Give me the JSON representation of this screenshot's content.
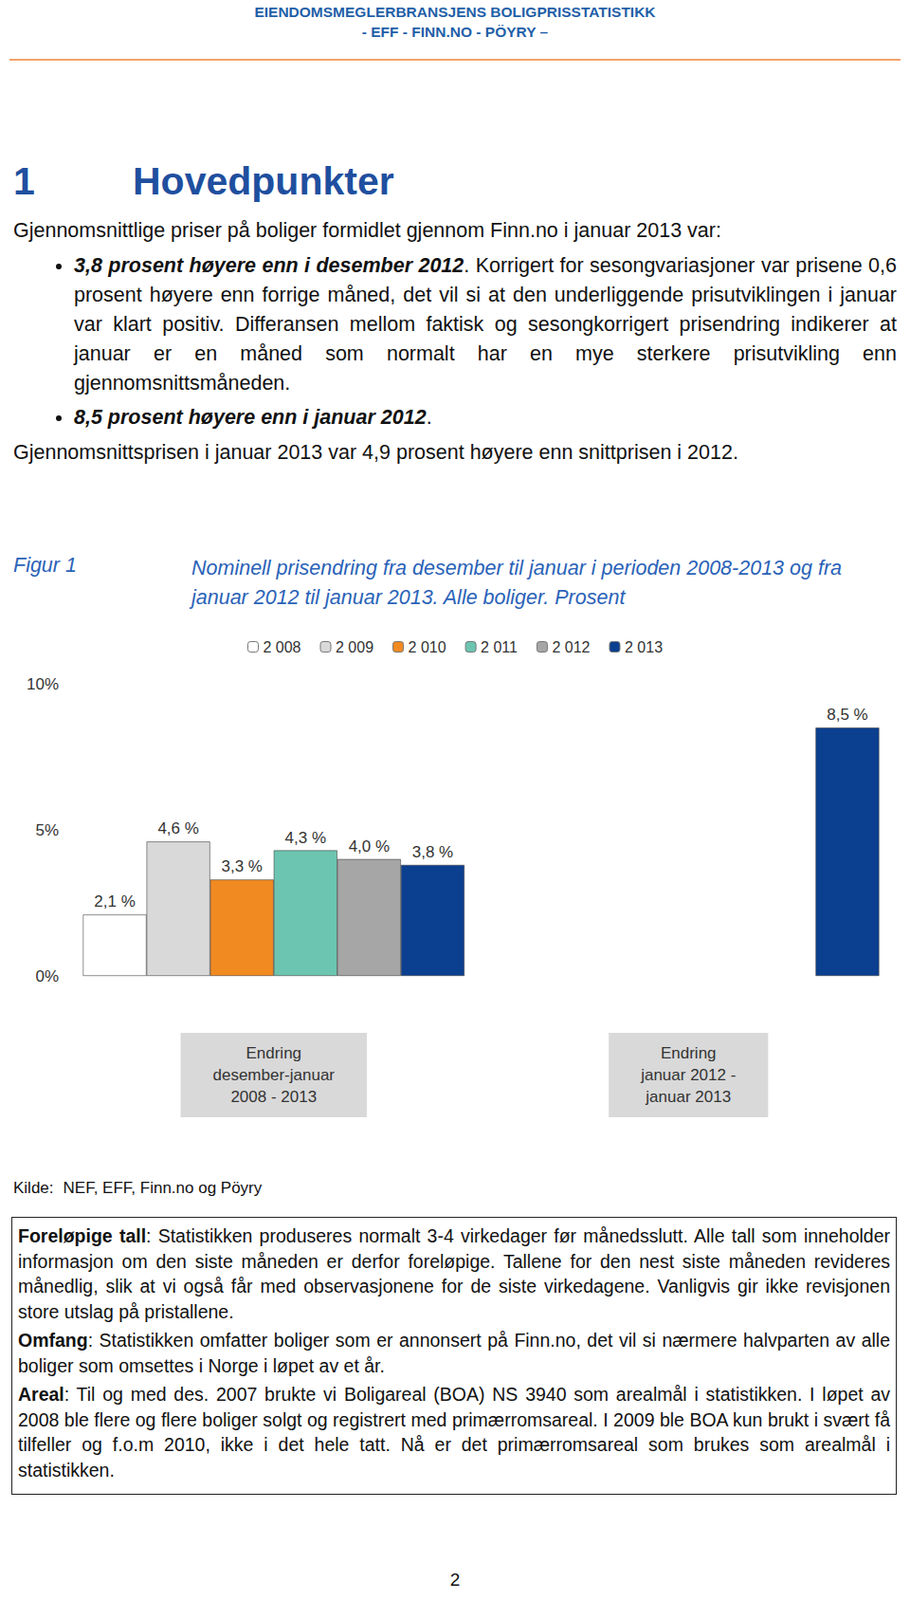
{
  "header": {
    "lines": [
      "EIENDOMSMEGLERBRANSJENS BOLIGPRISSTATISTIKK",
      "- EFF - FINN.NO - PÖYRY –"
    ]
  },
  "section": {
    "number": "1",
    "title": "Hovedpunkter"
  },
  "intro": "Gjennomsnittlige priser på boliger formidlet gjennom Finn.no i januar 2013 var:",
  "bullets": [
    {
      "bold": "3,8 prosent høyere enn i desember 2012",
      "text": ". Korrigert for sesongvariasjoner var prisene 0,6 prosent høyere enn forrige måned, det vil si at den underliggende prisutviklingen i januar var klart positiv. Differansen mellom faktisk og sesongkorrigert prisendring indikerer at januar er en måned som normalt har en mye sterkere prisutvikling enn gjennomsnittsmåneden."
    },
    {
      "bold": "8,5 prosent høyere enn i januar 2012",
      "text": "."
    }
  ],
  "paragraph": "Gjennomsnittsprisen i januar 2013 var 4,9 prosent høyere enn snittprisen i 2012.",
  "figure": {
    "label": "Figur 1",
    "caption": "Nominell prisendring fra desember til januar i perioden 2008-2013 og fra januar 2012 til januar  2013. Alle boliger. Prosent"
  },
  "chart_data": {
    "type": "bar",
    "categories": [
      "Endring\ndesember-januar\n2008 - 2013",
      "Endring\njanuar 2012 -\njanuar 2013"
    ],
    "series": [
      {
        "name": "2 008",
        "color": "#ffffff",
        "values": [
          2.1,
          null
        ],
        "value_labels": [
          "2,1 %",
          null
        ]
      },
      {
        "name": "2 009",
        "color": "#d9d9d9",
        "values": [
          4.6,
          null
        ],
        "value_labels": [
          "4,6 %",
          null
        ]
      },
      {
        "name": "2 010",
        "color": "#f28a22",
        "values": [
          3.3,
          null
        ],
        "value_labels": [
          "3,3 %",
          null
        ]
      },
      {
        "name": "2 011",
        "color": "#6cc5b0",
        "values": [
          4.3,
          null
        ],
        "value_labels": [
          "4,3 %",
          null
        ]
      },
      {
        "name": "2 012",
        "color": "#a6a6a6",
        "values": [
          4.0,
          null
        ],
        "value_labels": [
          "4,0 %",
          null
        ]
      },
      {
        "name": "2 013",
        "color": "#0b3f8f",
        "values": [
          3.8,
          8.5
        ],
        "value_labels": [
          "3,8 %",
          "8,5 %"
        ]
      }
    ],
    "ylim": [
      0,
      10
    ],
    "yticks": [
      {
        "value": 0,
        "label": "0%"
      },
      {
        "value": 5,
        "label": "5%"
      },
      {
        "value": 10,
        "label": "10%"
      }
    ],
    "grid": false,
    "legend": "top",
    "data_labels": true
  },
  "source": {
    "label": "Kilde:",
    "text": "NEF, EFF, Finn.no og Pöyry"
  },
  "notes": [
    {
      "term": "Foreløpige tall",
      "text": ": Statistikken produseres normalt 3-4 virkedager før månedsslutt. Alle tall som inneholder informasjon om den siste måneden er derfor foreløpige. Tallene for den nest siste måneden revideres månedlig, slik at vi også får med observasjonene for de siste virkedagene. Vanligvis gir ikke revisjonen store utslag på pristallene."
    },
    {
      "term": "Omfang",
      "text": ": Statistikken omfatter boliger som er annonsert på Finn.no, det vil si nærmere halvparten av alle boliger som omsettes i Norge i løpet av et år."
    },
    {
      "term": "Areal",
      "text": ": Til og med des. 2007 brukte vi Boligareal (BOA) NS 3940 som arealmål i statistikken. I løpet av 2008 ble flere og flere boliger solgt og registrert med primærromsareal. I 2009 ble BOA kun brukt i svært få tilfeller og f.o.m 2010, ikke i det hele tatt. Nå er det primærromsareal som brukes som arealmål i statistikken."
    }
  ],
  "page_number": "2"
}
